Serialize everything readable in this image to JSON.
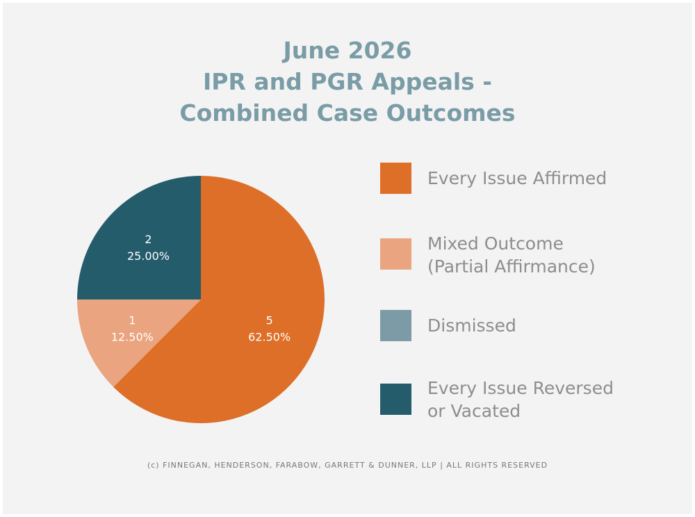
{
  "chart_data": {
    "type": "pie",
    "title_lines": [
      "June 2026",
      "IPR and PGR Appeals -",
      "Combined Case Outcomes"
    ],
    "categories": [
      "Every Issue Affirmed",
      "Mixed Outcome (Partial Affirmance)",
      "Dismissed",
      "Every Issue Reversed or Vacated"
    ],
    "values": [
      5,
      1,
      0,
      2
    ],
    "percent_labels": [
      "62.50%",
      "12.50%",
      "",
      "25.00%"
    ],
    "value_labels": [
      "5",
      "1",
      "",
      "2"
    ],
    "colors": [
      "#dd6f28",
      "#eaa47f",
      "#7c9ba6",
      "#255c6c"
    ],
    "legend_position": "right"
  },
  "legend": {
    "items": [
      {
        "lines": [
          "Every Issue Affirmed"
        ]
      },
      {
        "lines": [
          "Mixed Outcome",
          "(Partial Affirmance)"
        ]
      },
      {
        "lines": [
          "Dismissed"
        ]
      },
      {
        "lines": [
          "Every Issue Reversed",
          "or Vacated"
        ]
      }
    ]
  },
  "footer": "(c) FINNEGAN, HENDERSON, FARABOW, GARRETT & DUNNER, LLP | ALL RIGHTS RESERVED"
}
